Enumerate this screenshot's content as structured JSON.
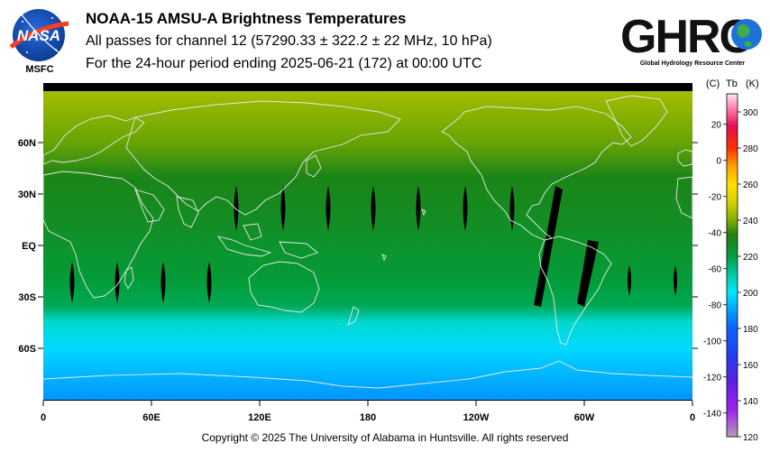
{
  "header": {
    "logo_left": {
      "text": "NASA",
      "sub": "MSFC"
    },
    "logo_right": {
      "text": "GHRC",
      "sub": "Global Hydrology Resource Center"
    },
    "title": "NOAA-15 AMSU-A Brightness Temperatures",
    "line2": "All passes for channel 12 (57290.33 ± 322.2 ± 22 MHz, 10 hPa)",
    "line3": "For the 24-hour period ending 2025-06-21 (172) at 00:00 UTC"
  },
  "footer": {
    "copyright": "Copyright © 2025 The University of Alabama in Huntsville.  All rights reserved"
  },
  "chart_data": {
    "type": "heatmap",
    "x_axis": {
      "ticks": [
        "0",
        "60E",
        "120E",
        "180",
        "120W",
        "60W",
        "0"
      ],
      "range": [
        0,
        360
      ]
    },
    "y_axis": {
      "ticks": [
        "60N",
        "30N",
        "EQ",
        "30S",
        "60S"
      ],
      "values": [
        60,
        30,
        0,
        -30,
        -60
      ]
    },
    "colorbar": {
      "header_c": "(C)",
      "header_tb": "Tb",
      "header_k": "(K)",
      "c_ticks": [
        "20",
        "0",
        "-20",
        "-40",
        "-60",
        "-80",
        "-100",
        "-120",
        "-140"
      ],
      "c_values": [
        20,
        0,
        -20,
        -40,
        -60,
        -80,
        -100,
        -120,
        -140
      ],
      "k_ticks": [
        "300",
        "280",
        "260",
        "240",
        "220",
        "200",
        "180",
        "160",
        "140",
        "120"
      ],
      "k_values": [
        300,
        280,
        260,
        240,
        220,
        200,
        180,
        160,
        140,
        120
      ],
      "range_k": [
        120,
        310
      ],
      "colors": [
        {
          "k": 120,
          "color": "#b39cb3"
        },
        {
          "k": 135,
          "color": "#a020f0"
        },
        {
          "k": 150,
          "color": "#6020e0"
        },
        {
          "k": 165,
          "color": "#2040f0"
        },
        {
          "k": 180,
          "color": "#1060ff"
        },
        {
          "k": 190,
          "color": "#00a0ff"
        },
        {
          "k": 200,
          "color": "#00e8ff"
        },
        {
          "k": 210,
          "color": "#00c8a0"
        },
        {
          "k": 220,
          "color": "#00a040"
        },
        {
          "k": 232,
          "color": "#208010"
        },
        {
          "k": 240,
          "color": "#80b000"
        },
        {
          "k": 250,
          "color": "#d8d000"
        },
        {
          "k": 260,
          "color": "#ffe000"
        },
        {
          "k": 270,
          "color": "#ffa000"
        },
        {
          "k": 280,
          "color": "#ff3000"
        },
        {
          "k": 292,
          "color": "#e01050"
        },
        {
          "k": 302,
          "color": "#ff80b0"
        },
        {
          "k": 310,
          "color": "#ffe8f0"
        }
      ]
    },
    "tb_by_latitude": [
      {
        "lat": 90,
        "k": 244
      },
      {
        "lat": 60,
        "k": 238
      },
      {
        "lat": 40,
        "k": 230
      },
      {
        "lat": 20,
        "k": 228
      },
      {
        "lat": 0,
        "k": 225
      },
      {
        "lat": -20,
        "k": 222
      },
      {
        "lat": -35,
        "k": 218
      },
      {
        "lat": -45,
        "k": 205
      },
      {
        "lat": -60,
        "k": 198
      },
      {
        "lat": -75,
        "k": 193
      },
      {
        "lat": -90,
        "k": 188
      }
    ]
  }
}
